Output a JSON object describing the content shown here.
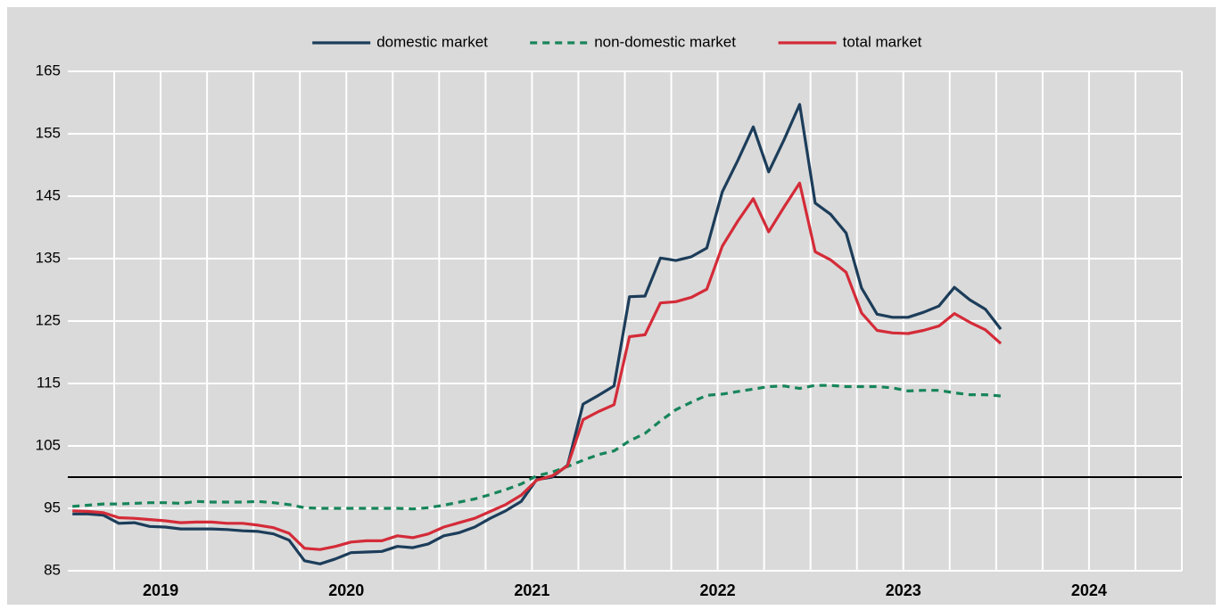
{
  "chart_data": {
    "type": "line",
    "legend": "top",
    "categories": [
      null,
      null,
      null,
      null,
      null,
      null,
      null,
      null,
      null,
      null,
      null,
      null,
      null,
      null,
      null,
      null,
      null,
      null,
      null,
      null,
      null,
      null,
      null,
      null,
      null,
      null,
      null,
      null,
      null,
      null,
      null,
      null,
      null,
      null,
      null,
      null,
      null,
      null,
      null,
      null,
      null,
      null,
      null,
      null,
      null,
      null,
      null,
      null,
      null,
      null,
      null,
      null,
      null,
      null,
      null,
      null,
      null,
      null,
      null,
      null,
      null,
      null,
      null,
      null,
      null,
      null,
      null,
      null,
      null,
      null,
      null,
      null
    ],
    "year_labels": [
      "2019",
      "2020",
      "2021",
      "2022",
      "2023",
      "2024"
    ],
    "ylim": [
      85,
      165
    ],
    "yticks": [
      85,
      95,
      105,
      115,
      125,
      135,
      145,
      155,
      165
    ],
    "grid": true,
    "hline": 100,
    "series": [
      {
        "name": "domestic market",
        "color": "#1c3d5a",
        "dash": false,
        "values": [
          94.1,
          94.1,
          93.9,
          92.6,
          92.7,
          92.1,
          92.0,
          91.7,
          91.7,
          91.7,
          91.6,
          91.4,
          91.3,
          90.9,
          89.9,
          86.6,
          86.1,
          86.9,
          87.9,
          88.0,
          88.1,
          88.9,
          88.7,
          89.3,
          90.6,
          91.1,
          92.0,
          93.4,
          94.6,
          96.1,
          99.6,
          100.0,
          101.9,
          111.7,
          113.1,
          114.6,
          128.9,
          129.0,
          135.1,
          134.7,
          135.3,
          136.7,
          145.7,
          150.7,
          156.1,
          148.9,
          154.1,
          159.7,
          143.9,
          142.1,
          139.1,
          130.3,
          126.1,
          125.6,
          125.6,
          126.4,
          127.4,
          130.4,
          128.4,
          126.9,
          123.7,
          null,
          null,
          null,
          null,
          null,
          null,
          null,
          null,
          null,
          null,
          null
        ]
      },
      {
        "name": "non-domestic market",
        "color": "#17855a",
        "dash": true,
        "values": [
          95.3,
          95.5,
          95.7,
          95.7,
          95.8,
          95.9,
          95.9,
          95.8,
          96.1,
          96.0,
          96.0,
          96.0,
          96.1,
          95.9,
          95.6,
          95.1,
          95.0,
          95.0,
          95.0,
          95.0,
          95.0,
          95.0,
          94.9,
          95.1,
          95.5,
          96.0,
          96.5,
          97.2,
          98.0,
          98.9,
          100.2,
          100.8,
          101.7,
          102.7,
          103.6,
          104.2,
          105.8,
          107.0,
          109.0,
          110.8,
          112.0,
          113.1,
          113.3,
          113.7,
          114.1,
          114.5,
          114.6,
          114.2,
          114.7,
          114.7,
          114.5,
          114.5,
          114.5,
          114.3,
          113.8,
          113.9,
          113.9,
          113.5,
          113.2,
          113.2,
          113.0,
          null,
          null,
          null,
          null,
          null,
          null,
          null,
          null,
          null,
          null,
          null
        ]
      },
      {
        "name": "total market",
        "color": "#d42b38",
        "dash": false,
        "values": [
          94.6,
          94.5,
          94.3,
          93.5,
          93.4,
          93.2,
          93.0,
          92.7,
          92.8,
          92.8,
          92.6,
          92.6,
          92.3,
          91.9,
          91.0,
          88.6,
          88.4,
          88.9,
          89.6,
          89.8,
          89.8,
          90.6,
          90.3,
          90.9,
          92.0,
          92.7,
          93.4,
          94.5,
          95.6,
          97.1,
          99.5,
          100.2,
          101.8,
          109.2,
          110.5,
          111.6,
          122.5,
          122.8,
          127.9,
          128.1,
          128.8,
          130.1,
          137.0,
          141.0,
          144.6,
          139.3,
          143.3,
          147.1,
          136.1,
          134.8,
          132.8,
          126.3,
          123.5,
          123.1,
          123.0,
          123.5,
          124.2,
          126.2,
          124.8,
          123.6,
          121.4,
          null,
          null,
          null,
          null,
          null,
          null,
          null,
          null,
          null,
          null,
          null
        ]
      }
    ]
  }
}
